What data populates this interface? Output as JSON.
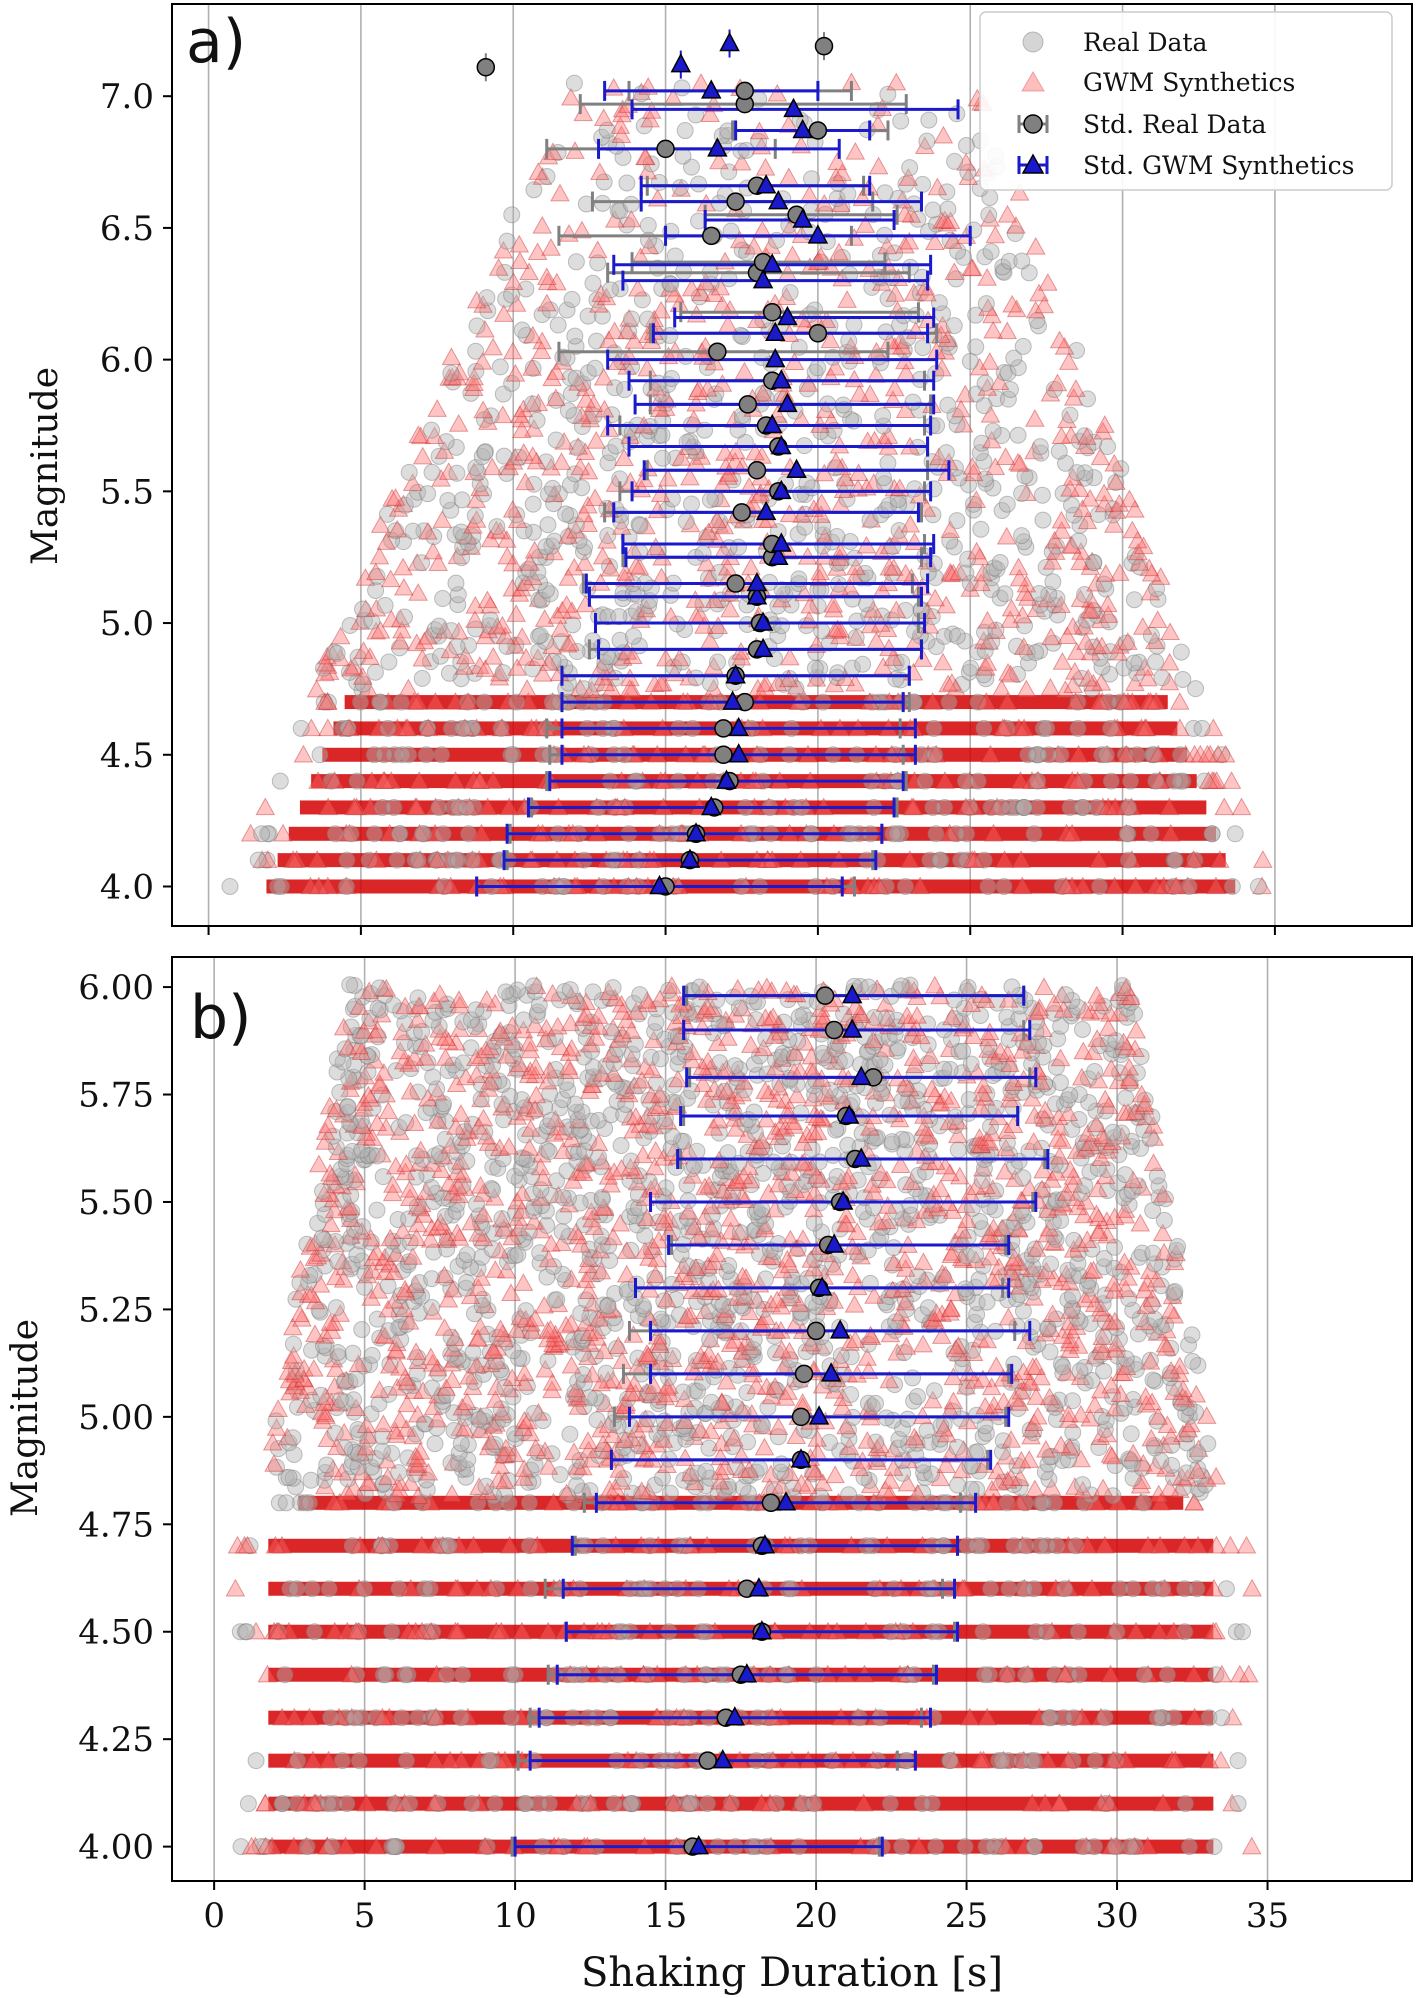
{
  "chart_data": [
    {
      "type": "scatter",
      "panel_label": "a)",
      "title": "",
      "xlabel": "",
      "ylabel": "Magnitude",
      "xlim": [
        -1.2,
        39.5
      ],
      "ylim": [
        3.85,
        7.35
      ],
      "xticks": [
        0,
        5,
        10,
        15,
        20,
        25,
        30,
        35
      ],
      "yticks": [
        4.0,
        4.5,
        5.0,
        5.5,
        6.0,
        6.5,
        7.0
      ],
      "ytick_labels": [
        "4.0",
        "4.5",
        "5.0",
        "5.5",
        "6.0",
        "6.5",
        "7.0"
      ],
      "grid": "vertical",
      "legend": {
        "position": "top-right",
        "entries": [
          "Real Data",
          "GWM Synthetics",
          "Std. Real Data",
          "Std. GWM Synthetics"
        ]
      },
      "scatter_range": {
        "x_min_at_low_mag": 0.5,
        "x_max_at_low_mag": 35.5,
        "x_min_at_high_mag": 11,
        "x_max_at_high_mag": 26
      },
      "series": [
        {
          "name": "Std. Real Data",
          "marker": "circle",
          "color": "#808080",
          "points": [
            {
              "m": 4.0,
              "mean": 15.0,
              "err_low": 6.2,
              "err_high": 6.2
            },
            {
              "m": 4.1,
              "mean": 15.8,
              "err_low": 6.0,
              "err_high": 6.0
            },
            {
              "m": 4.2,
              "mean": 16.0,
              "err_low": 6.1,
              "err_high": 6.1
            },
            {
              "m": 4.3,
              "mean": 16.6,
              "err_low": 6.0,
              "err_high": 6.0
            },
            {
              "m": 4.4,
              "mean": 17.1,
              "err_low": 6.0,
              "err_high": 5.8
            },
            {
              "m": 4.5,
              "mean": 16.9,
              "err_low": 5.7,
              "err_high": 5.9
            },
            {
              "m": 4.6,
              "mean": 16.9,
              "err_low": 5.8,
              "err_high": 5.8
            },
            {
              "m": 4.7,
              "mean": 17.6,
              "err_low": 6.0,
              "err_high": 5.4
            },
            {
              "m": 4.8,
              "mean": 17.3,
              "err_low": 5.7,
              "err_high": 5.7
            },
            {
              "m": 4.9,
              "mean": 18.0,
              "err_low": 5.5,
              "err_high": 5.4
            },
            {
              "m": 5.0,
              "mean": 18.1,
              "err_low": 5.4,
              "err_high": 5.2
            },
            {
              "m": 5.1,
              "mean": 18.0,
              "err_low": 5.5,
              "err_high": 5.3
            },
            {
              "m": 5.15,
              "mean": 17.3,
              "err_low": 5.0,
              "err_high": 5.8
            },
            {
              "m": 5.25,
              "mean": 18.5,
              "err_low": 4.9,
              "err_high": 4.9
            },
            {
              "m": 5.3,
              "mean": 18.5,
              "err_low": 4.9,
              "err_high": 5.0
            },
            {
              "m": 5.42,
              "mean": 17.5,
              "err_low": 4.5,
              "err_high": 5.9
            },
            {
              "m": 5.5,
              "mean": 18.7,
              "err_low": 5.2,
              "err_high": 4.8
            },
            {
              "m": 5.58,
              "mean": 18.0,
              "err_low": 3.6,
              "err_high": 5.6
            },
            {
              "m": 5.67,
              "mean": 18.7,
              "err_low": 4.9,
              "err_high": 4.9
            },
            {
              "m": 5.75,
              "mean": 18.3,
              "err_low": 4.8,
              "err_high": 5.2
            },
            {
              "m": 5.83,
              "mean": 17.7,
              "err_low": 3.2,
              "err_high": 6.0
            },
            {
              "m": 5.92,
              "mean": 18.5,
              "err_low": 4.0,
              "err_high": 5.0
            },
            {
              "m": 6.03,
              "mean": 16.7,
              "err_low": 5.2,
              "err_high": 5.6
            },
            {
              "m": 6.1,
              "mean": 20.0,
              "err_low": 5.5,
              "err_high": 3.9
            },
            {
              "m": 6.18,
              "mean": 18.5,
              "err_low": 3.0,
              "err_high": 4.8
            },
            {
              "m": 6.33,
              "mean": 18.0,
              "err_low": 4.9,
              "err_high": 5.0
            },
            {
              "m": 6.37,
              "mean": 18.2,
              "err_low": 4.3,
              "err_high": 4.0
            },
            {
              "m": 6.47,
              "mean": 16.5,
              "err_low": 5.0,
              "err_high": 4.6
            },
            {
              "m": 6.55,
              "mean": 19.3,
              "err_low": 3.0,
              "err_high": 3.3
            },
            {
              "m": 6.6,
              "mean": 17.3,
              "err_low": 4.7,
              "err_high": 4.5
            },
            {
              "m": 6.66,
              "mean": 18.0,
              "err_low": 3.6,
              "err_high": 3.5
            },
            {
              "m": 6.8,
              "mean": 15.0,
              "err_low": 3.9,
              "err_high": 3.6
            },
            {
              "m": 6.87,
              "mean": 20.0,
              "err_low": 2.8,
              "err_high": 2.3
            },
            {
              "m": 6.97,
              "mean": 17.6,
              "err_low": 5.4,
              "err_high": 5.3
            },
            {
              "m": 7.02,
              "mean": 17.6,
              "err_low": 3.8,
              "err_high": 3.5
            },
            {
              "m": 7.11,
              "mean": 9.1,
              "err_low": 0,
              "err_high": 0
            },
            {
              "m": 7.19,
              "mean": 20.2,
              "err_low": 0,
              "err_high": 0
            }
          ]
        },
        {
          "name": "Std. GWM Synthetics",
          "marker": "triangle",
          "color": "#1f1fcc",
          "points": [
            {
              "m": 4.0,
              "mean": 14.8,
              "err_low": 6.0,
              "err_high": 6.0
            },
            {
              "m": 4.1,
              "mean": 15.8,
              "err_low": 6.1,
              "err_high": 6.1
            },
            {
              "m": 4.2,
              "mean": 16.0,
              "err_low": 6.2,
              "err_high": 6.1
            },
            {
              "m": 4.3,
              "mean": 16.5,
              "err_low": 6.0,
              "err_high": 6.0
            },
            {
              "m": 4.4,
              "mean": 17.0,
              "err_low": 5.8,
              "err_high": 5.8
            },
            {
              "m": 4.5,
              "mean": 17.4,
              "err_low": 5.8,
              "err_high": 5.8
            },
            {
              "m": 4.6,
              "mean": 17.4,
              "err_low": 5.8,
              "err_high": 5.8
            },
            {
              "m": 4.7,
              "mean": 17.2,
              "err_low": 5.6,
              "err_high": 5.6
            },
            {
              "m": 4.8,
              "mean": 17.3,
              "err_low": 5.7,
              "err_high": 5.7
            },
            {
              "m": 4.9,
              "mean": 18.2,
              "err_low": 5.4,
              "err_high": 5.2
            },
            {
              "m": 5.0,
              "mean": 18.2,
              "err_low": 5.5,
              "err_high": 5.3
            },
            {
              "m": 5.1,
              "mean": 18.0,
              "err_low": 5.5,
              "err_high": 5.4
            },
            {
              "m": 5.15,
              "mean": 18.0,
              "err_low": 5.6,
              "err_high": 5.6
            },
            {
              "m": 5.25,
              "mean": 18.7,
              "err_low": 5.0,
              "err_high": 5.0
            },
            {
              "m": 5.3,
              "mean": 18.8,
              "err_low": 5.2,
              "err_high": 5.0
            },
            {
              "m": 5.42,
              "mean": 18.3,
              "err_low": 5.0,
              "err_high": 5.0
            },
            {
              "m": 5.5,
              "mean": 18.8,
              "err_low": 4.9,
              "err_high": 4.9
            },
            {
              "m": 5.58,
              "mean": 19.3,
              "err_low": 5.0,
              "err_high": 5.0
            },
            {
              "m": 5.67,
              "mean": 18.8,
              "err_low": 5.0,
              "err_high": 4.8
            },
            {
              "m": 5.75,
              "mean": 18.5,
              "err_low": 5.4,
              "err_high": 5.2
            },
            {
              "m": 5.83,
              "mean": 19.0,
              "err_low": 5.0,
              "err_high": 4.8
            },
            {
              "m": 5.92,
              "mean": 18.8,
              "err_low": 5.0,
              "err_high": 5.0
            },
            {
              "m": 6.0,
              "mean": 18.6,
              "err_low": 5.5,
              "err_high": 5.3
            },
            {
              "m": 6.1,
              "mean": 18.6,
              "err_low": 4.0,
              "err_high": 5.0
            },
            {
              "m": 6.16,
              "mean": 19.0,
              "err_low": 3.7,
              "err_high": 4.8
            },
            {
              "m": 6.3,
              "mean": 18.2,
              "err_low": 4.6,
              "err_high": 5.4
            },
            {
              "m": 6.36,
              "mean": 18.5,
              "err_low": 5.2,
              "err_high": 5.2
            },
            {
              "m": 6.47,
              "mean": 20.0,
              "err_low": 5.0,
              "err_high": 5.0
            },
            {
              "m": 6.53,
              "mean": 19.5,
              "err_low": 3.2,
              "err_high": 3.0
            },
            {
              "m": 6.6,
              "mean": 18.7,
              "err_low": 4.5,
              "err_high": 4.7
            },
            {
              "m": 6.66,
              "mean": 18.3,
              "err_low": 4.1,
              "err_high": 3.4
            },
            {
              "m": 6.8,
              "mean": 16.7,
              "err_low": 3.9,
              "err_high": 4.0
            },
            {
              "m": 6.87,
              "mean": 19.5,
              "err_low": 2.2,
              "err_high": 2.2
            },
            {
              "m": 6.95,
              "mean": 19.2,
              "err_low": 5.3,
              "err_high": 5.4
            },
            {
              "m": 7.02,
              "mean": 16.5,
              "err_low": 3.5,
              "err_high": 3.5
            },
            {
              "m": 7.12,
              "mean": 15.5,
              "err_low": 0,
              "err_high": 0
            },
            {
              "m": 7.2,
              "mean": 17.1,
              "err_low": 0,
              "err_high": 0
            }
          ]
        }
      ]
    },
    {
      "type": "scatter",
      "panel_label": "b)",
      "title": "",
      "xlabel": "Shaking Duration [s]",
      "ylabel": "Magnitude",
      "xlim": [
        -1.4,
        39.8
      ],
      "ylim": [
        3.92,
        6.07
      ],
      "xticks": [
        0,
        5,
        10,
        15,
        20,
        25,
        30,
        35
      ],
      "xtick_labels": [
        "0",
        "5",
        "10",
        "15",
        "20",
        "25",
        "30",
        "35"
      ],
      "yticks": [
        4.0,
        4.25,
        4.5,
        4.75,
        5.0,
        5.25,
        5.5,
        5.75,
        6.0
      ],
      "ytick_labels": [
        "4.00",
        "4.25",
        "4.50",
        "4.75",
        "5.00",
        "5.25",
        "5.50",
        "5.75",
        "6.00"
      ],
      "grid": "vertical",
      "scatter_range": {
        "x_min": 0.5,
        "x_max": 35.5
      },
      "series": [
        {
          "name": "Std. Real Data",
          "marker": "circle",
          "color": "#808080",
          "points": [
            {
              "m": 4.0,
              "mean": 15.9,
              "err_low": 6.0,
              "err_high": 6.2
            },
            {
              "m": 4.2,
              "mean": 16.4,
              "err_low": 6.3,
              "err_high": 6.3
            },
            {
              "m": 4.3,
              "mean": 17.0,
              "err_low": 6.5,
              "err_high": 6.5
            },
            {
              "m": 4.4,
              "mean": 17.5,
              "err_low": 6.4,
              "err_high": 6.4
            },
            {
              "m": 4.5,
              "mean": 18.2,
              "err_low": 6.5,
              "err_high": 6.4
            },
            {
              "m": 4.6,
              "mean": 17.7,
              "err_low": 6.7,
              "err_high": 6.5
            },
            {
              "m": 4.7,
              "mean": 18.2,
              "err_low": 6.2,
              "err_high": 6.5
            },
            {
              "m": 4.8,
              "mean": 18.5,
              "err_low": 6.2,
              "err_high": 6.3
            },
            {
              "m": 4.9,
              "mean": 19.5,
              "err_low": 6.3,
              "err_high": 6.2
            },
            {
              "m": 5.0,
              "mean": 19.5,
              "err_low": 6.2,
              "err_high": 6.8
            },
            {
              "m": 5.1,
              "mean": 19.6,
              "err_low": 6.0,
              "err_high": 6.8
            },
            {
              "m": 5.2,
              "mean": 20.0,
              "err_low": 6.2,
              "err_high": 6.6
            },
            {
              "m": 5.3,
              "mean": 20.1,
              "err_low": 6.1,
              "err_high": 6.1
            },
            {
              "m": 5.4,
              "mean": 20.4,
              "err_low": 5.2,
              "err_high": 5.9
            },
            {
              "m": 5.5,
              "mean": 20.8,
              "err_low": 6.3,
              "err_high": 6.4
            },
            {
              "m": 5.6,
              "mean": 21.3,
              "err_low": 5.8,
              "err_high": 6.3
            },
            {
              "m": 5.7,
              "mean": 21.0,
              "err_low": 5.4,
              "err_high": 5.7
            },
            {
              "m": 5.79,
              "mean": 21.9,
              "err_low": 6.1,
              "err_high": 5.2
            },
            {
              "m": 5.9,
              "mean": 20.6,
              "err_low": 5.0,
              "err_high": 6.3
            },
            {
              "m": 5.98,
              "mean": 20.3,
              "err_low": 4.6,
              "err_high": 6.6
            }
          ]
        },
        {
          "name": "Std. GWM Synthetics",
          "marker": "triangle",
          "color": "#1f1fcc",
          "points": [
            {
              "m": 4.0,
              "mean": 16.1,
              "err_low": 6.1,
              "err_high": 6.1
            },
            {
              "m": 4.2,
              "mean": 16.9,
              "err_low": 6.4,
              "err_high": 6.4
            },
            {
              "m": 4.3,
              "mean": 17.3,
              "err_low": 6.5,
              "err_high": 6.5
            },
            {
              "m": 4.4,
              "mean": 17.7,
              "err_low": 6.3,
              "err_high": 6.3
            },
            {
              "m": 4.5,
              "mean": 18.2,
              "err_low": 6.5,
              "err_high": 6.5
            },
            {
              "m": 4.6,
              "mean": 18.1,
              "err_low": 6.5,
              "err_high": 6.5
            },
            {
              "m": 4.7,
              "mean": 18.3,
              "err_low": 6.4,
              "err_high": 6.4
            },
            {
              "m": 4.8,
              "mean": 19.0,
              "err_low": 6.3,
              "err_high": 6.3
            },
            {
              "m": 4.9,
              "mean": 19.5,
              "err_low": 6.3,
              "err_high": 6.3
            },
            {
              "m": 5.0,
              "mean": 20.1,
              "err_low": 6.3,
              "err_high": 6.3
            },
            {
              "m": 5.1,
              "mean": 20.5,
              "err_low": 6.0,
              "err_high": 6.0
            },
            {
              "m": 5.2,
              "mean": 20.8,
              "err_low": 6.3,
              "err_high": 6.3
            },
            {
              "m": 5.3,
              "mean": 20.2,
              "err_low": 6.2,
              "err_high": 6.2
            },
            {
              "m": 5.4,
              "mean": 20.6,
              "err_low": 5.5,
              "err_high": 5.8
            },
            {
              "m": 5.5,
              "mean": 20.9,
              "err_low": 6.4,
              "err_high": 6.4
            },
            {
              "m": 5.6,
              "mean": 21.5,
              "err_low": 6.1,
              "err_high": 6.2
            },
            {
              "m": 5.7,
              "mean": 21.1,
              "err_low": 5.6,
              "err_high": 5.6
            },
            {
              "m": 5.79,
              "mean": 21.5,
              "err_low": 5.8,
              "err_high": 5.8
            },
            {
              "m": 5.9,
              "mean": 21.2,
              "err_low": 5.6,
              "err_high": 5.9
            },
            {
              "m": 5.98,
              "mean": 21.2,
              "err_low": 5.6,
              "err_high": 5.7
            }
          ]
        }
      ]
    }
  ],
  "legend": {
    "real_data": "Real Data",
    "gwm_synthetics": "GWM Synthetics",
    "std_real_data": "Std. Real Data",
    "std_gwm_synthetics": "Std. GWM Synthetics"
  },
  "colors": {
    "real_point": "#b3b3b3",
    "synthetic_point": "#ff6f6f",
    "synthetic_dense": "#d40000",
    "std_real": "#808080",
    "std_synthetic": "#1a1acc",
    "grid": "#b0b0b0"
  }
}
